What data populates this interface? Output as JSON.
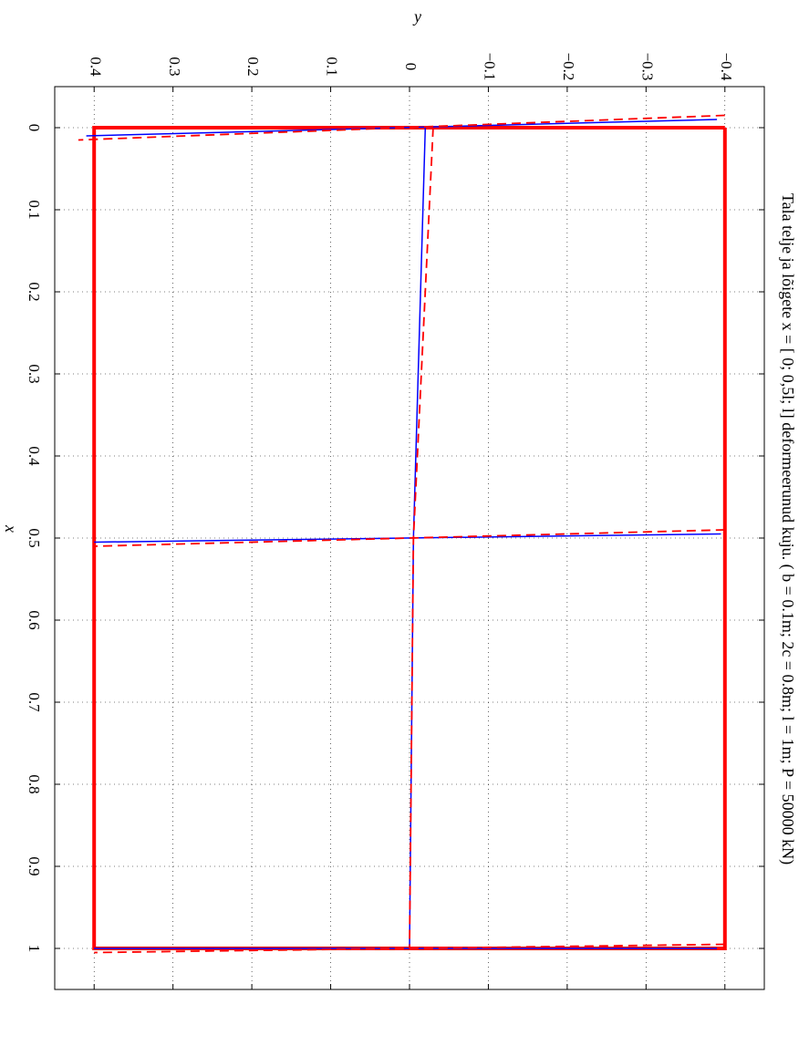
{
  "chart_data": {
    "type": "line",
    "title": "Tala telje ja lõigete x = [ 0; 0,5l; l] deformeerunud kuju. ( b = 0.1m; 2c = 0.8m; l = 1m; P = 50000 kN)",
    "xlabel": "x",
    "ylabel": "y",
    "xlim": [
      -0.05,
      1.05
    ],
    "ylim": [
      -0.45,
      0.45
    ],
    "y_reversed": true,
    "x_ticks": [
      "0",
      "0.1",
      "0.2",
      "0.3",
      "0.4",
      "0.5",
      "0.6",
      "0.7",
      "0.8",
      "0.9",
      "1"
    ],
    "y_ticks": [
      "−0.4",
      "−0.3",
      "−0.2",
      "−0.1",
      "0",
      "0.1",
      "0.2",
      "0.3",
      "0.4"
    ],
    "grid": true,
    "series": [
      {
        "color": "#ff0000",
        "style": "solid-thick",
        "x": [
          0,
          1,
          1,
          0,
          0
        ],
        "y": [
          -0.4,
          -0.4,
          0.4,
          0.4,
          -0.4
        ]
      },
      {
        "color": "#0000ff",
        "style": "solid",
        "segments": [
          {
            "x": [
              -0.01,
              0.01
            ],
            "y": [
              -0.39,
              0.41
            ]
          },
          {
            "x": [
              0.495,
              0.505
            ],
            "y": [
              -0.395,
              0.4
            ]
          },
          {
            "x": [
              1.0,
              1.0
            ],
            "y": [
              -0.39,
              0.4
            ]
          },
          {
            "x": [
              0,
              0.5,
              1
            ],
            "y": [
              -0.02,
              -0.005,
              0
            ]
          }
        ]
      },
      {
        "color": "#ff0000",
        "style": "dashed",
        "segments": [
          {
            "x": [
              -0.015,
              0.015
            ],
            "y": [
              -0.4,
              0.42
            ]
          },
          {
            "x": [
              0.49,
              0.51
            ],
            "y": [
              -0.4,
              0.4
            ]
          },
          {
            "x": [
              0.995,
              1.005
            ],
            "y": [
              -0.4,
              0.4
            ]
          },
          {
            "x": [
              0,
              0.5,
              1
            ],
            "y": [
              -0.03,
              -0.005,
              0
            ]
          }
        ]
      }
    ]
  }
}
